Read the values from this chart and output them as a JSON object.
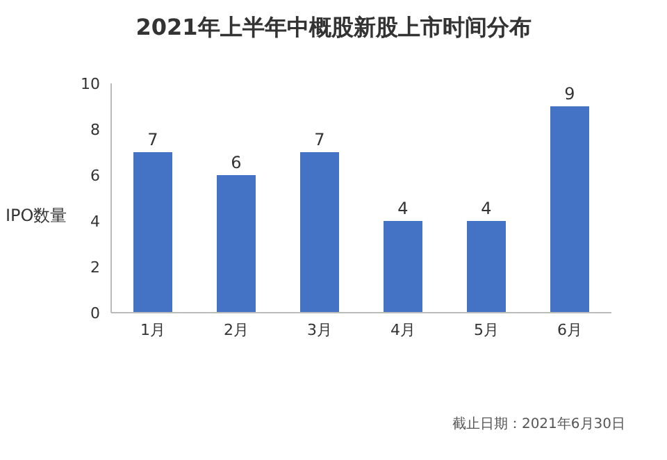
{
  "chart_data": {
    "type": "bar",
    "title": "2021年上半年中概股新股上市时间分布",
    "ylabel": "IPO数量",
    "categories": [
      "1月",
      "2月",
      "3月",
      "4月",
      "5月",
      "6月"
    ],
    "values": [
      7,
      6,
      7,
      4,
      4,
      9
    ],
    "color": "#4472c4",
    "ylim": [
      0,
      10
    ],
    "yticks": [
      0,
      2,
      4,
      6,
      8,
      10
    ],
    "grid": false,
    "data_labels": true,
    "annotations": [
      "截止日期：2021年6月30日"
    ]
  }
}
